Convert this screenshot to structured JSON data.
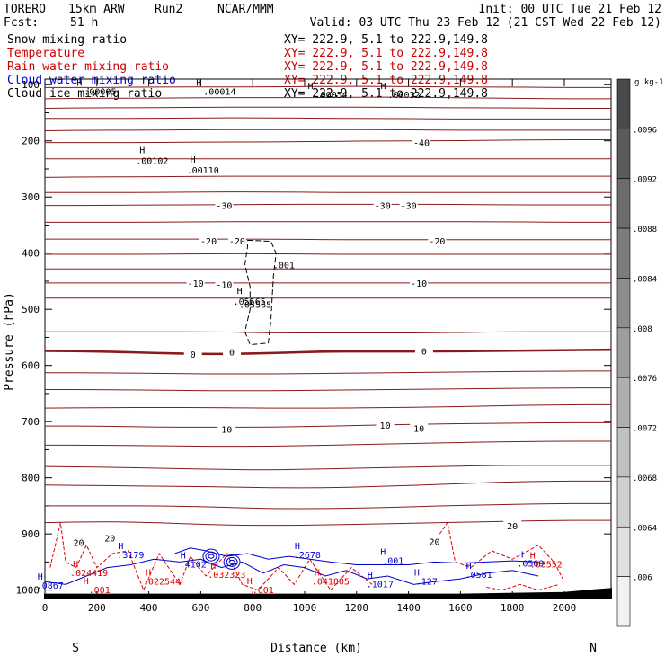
{
  "header": {
    "model": "TORERO",
    "resolution": "15km ARW",
    "run": "Run2",
    "source": "NCAR/MMM",
    "init": "Init: 00 UTC Tue 21 Feb 12",
    "fcst_label": "Fcst:",
    "fcst_value": "51 h",
    "valid": "Valid: 03 UTC Thu 23 Feb 12 (21 CST Wed 22 Feb 12)"
  },
  "fields": [
    {
      "name": "Snow mixing ratio",
      "xy": "XY= 222.9,   5.1 to 222.9,149.8",
      "color": "#000000"
    },
    {
      "name": "Temperature",
      "xy": "XY= 222.9,   5.1 to 222.9,149.8",
      "color": "#cc0000"
    },
    {
      "name": "Rain water mixing ratio",
      "xy": "XY= 222.9,   5.1 to 222.9,149.8",
      "color": "#cc0000"
    },
    {
      "name": "Cloud water mixing ratio",
      "xy": "XY= 222.9,   5.1 to 222.9,149.8",
      "color": "#0000cc"
    },
    {
      "name": "Cloud ice mixing ratio",
      "xy": "XY= 222.9,   5.1 to 222.9,149.8",
      "color": "#000000"
    }
  ],
  "colors": {
    "temperature": "#8b1a1a",
    "freezing": "#8b1a1a",
    "rain": "#dd0000",
    "cloud_water": "#0000cc",
    "ice": "#000000"
  },
  "chart_data": {
    "type": "line",
    "xlabel": "Distance (km)",
    "ylabel": "Pressure (hPa)",
    "xlim": [
      0,
      2180
    ],
    "ylim": [
      1015,
      90
    ],
    "x_ticks": [
      "0",
      "200",
      "400",
      "600",
      "800",
      "1000",
      "1200",
      "1400",
      "1600",
      "1800",
      "2000"
    ],
    "y_ticks": [
      "100",
      "200",
      "300",
      "400",
      "500",
      "600",
      "700",
      "800",
      "900",
      "1000"
    ],
    "end_labels": {
      "left": "S",
      "right": "N"
    },
    "isotherms": [
      {
        "t": -40,
        "p": [
          105,
          105,
          104,
          104,
          104,
          103,
          103,
          104,
          104,
          105,
          105
        ]
      },
      {
        "t": -40,
        "p": [
          125,
          124,
          124,
          123,
          123,
          123,
          122,
          123,
          124,
          125,
          125
        ]
      },
      {
        "t": -40,
        "p": [
          142,
          141,
          141,
          140,
          140,
          140,
          140,
          141,
          141,
          142,
          142
        ]
      },
      {
        "t": -40,
        "p": [
          160,
          160,
          160,
          159,
          159,
          160,
          160,
          161,
          161,
          161,
          161
        ]
      },
      {
        "t": -40,
        "p": [
          182,
          181,
          181,
          180,
          180,
          180,
          180,
          181,
          181,
          181,
          181
        ]
      },
      {
        "t": -40,
        "p": [
          203,
          203,
          203,
          202,
          202,
          201,
          200,
          200,
          199,
          198,
          198
        ]
      },
      {
        "t": -30,
        "p": [
          232,
          232,
          232,
          232,
          232,
          232,
          232,
          232,
          232,
          232,
          232
        ]
      },
      {
        "t": -30,
        "p": [
          265,
          264,
          264,
          263,
          263,
          263,
          263,
          263,
          263,
          263,
          263
        ]
      },
      {
        "t": -30,
        "p": [
          292,
          292,
          292,
          291,
          291,
          292,
          292,
          292,
          292,
          292,
          292
        ]
      },
      {
        "t": -30,
        "p": [
          315,
          315,
          314,
          314,
          313,
          313,
          313,
          313,
          314,
          314,
          314
        ]
      },
      {
        "t": -30,
        "p": [
          345,
          345,
          345,
          344,
          344,
          344,
          344,
          344,
          344,
          345,
          345
        ]
      },
      {
        "t": -20,
        "p": [
          375,
          375,
          375,
          375,
          375,
          376,
          376,
          376,
          376,
          376,
          376
        ]
      },
      {
        "t": -20,
        "p": [
          402,
          402,
          402,
          401,
          401,
          402,
          402,
          402,
          402,
          402,
          402
        ]
      },
      {
        "t": -20,
        "p": [
          428,
          428,
          428,
          428,
          428,
          428,
          428,
          428,
          428,
          428,
          428
        ]
      },
      {
        "t": -10,
        "p": [
          453,
          453,
          453,
          453,
          453,
          453,
          453,
          453,
          453,
          453,
          453
        ]
      },
      {
        "t": -10,
        "p": [
          480,
          480,
          480,
          480,
          480,
          480,
          480,
          480,
          480,
          480,
          480
        ]
      },
      {
        "t": -10,
        "p": [
          510,
          510,
          510,
          510,
          510,
          510,
          510,
          510,
          510,
          510,
          510
        ]
      },
      {
        "t": -10,
        "p": [
          540,
          540,
          540,
          540,
          542,
          542,
          542,
          542,
          540,
          540,
          540
        ]
      },
      {
        "t": 0,
        "p": [
          574,
          575,
          578,
          580,
          578,
          575,
          575,
          575,
          574,
          573,
          572
        ]
      },
      {
        "t": 0,
        "p": [
          613,
          613,
          614,
          615,
          615,
          614,
          613,
          612,
          611,
          610,
          610
        ]
      },
      {
        "t": 0,
        "p": [
          643,
          643,
          644,
          645,
          645,
          644,
          643,
          642,
          641,
          640,
          640
        ]
      },
      {
        "t": 10,
        "p": [
          676,
          675,
          675,
          675,
          676,
          676,
          675,
          674,
          672,
          670,
          670
        ]
      },
      {
        "t": 10,
        "p": [
          708,
          708,
          710,
          710,
          710,
          708,
          706,
          704,
          703,
          702,
          702
        ]
      },
      {
        "t": 10,
        "p": [
          742,
          742,
          743,
          744,
          744,
          742,
          740,
          738,
          736,
          735,
          735
        ]
      },
      {
        "t": 10,
        "p": [
          780,
          781,
          783,
          785,
          786,
          784,
          782,
          780,
          778,
          778,
          778
        ]
      },
      {
        "t": 20,
        "p": [
          813,
          814,
          815,
          816,
          818,
          818,
          815,
          812,
          808,
          806,
          806
        ]
      },
      {
        "t": 20,
        "p": [
          850,
          850,
          850,
          852,
          855,
          855,
          853,
          850,
          848,
          846,
          846
        ]
      },
      {
        "t": 20,
        "p": [
          880,
          878,
          880,
          884,
          885,
          884,
          882,
          880,
          878,
          876,
          876
        ]
      }
    ],
    "isotherm_labels": [
      {
        "text": "-40",
        "x": 1450,
        "p": 203
      },
      {
        "text": "-30",
        "x": 690,
        "p": 315
      },
      {
        "text": "-30",
        "x": 1300,
        "p": 315
      },
      {
        "text": "-30",
        "x": 1400,
        "p": 315
      },
      {
        "text": "-20",
        "x": 630,
        "p": 378
      },
      {
        "text": "-20",
        "x": 740,
        "p": 378
      },
      {
        "text": "-20",
        "x": 1510,
        "p": 378
      },
      {
        "text": "-10",
        "x": 580,
        "p": 453
      },
      {
        "text": "-10",
        "x": 690,
        "p": 456
      },
      {
        "text": "-10",
        "x": 1440,
        "p": 453
      },
      {
        "text": "0",
        "x": 570,
        "p": 580
      },
      {
        "text": "0",
        "x": 720,
        "p": 576
      },
      {
        "text": "0",
        "x": 1460,
        "p": 574
      },
      {
        "text": "10",
        "x": 1310,
        "p": 706
      },
      {
        "text": "10",
        "x": 1440,
        "p": 712
      },
      {
        "text": "10",
        "x": 700,
        "p": 713
      },
      {
        "text": "20",
        "x": 1800,
        "p": 885
      },
      {
        "text": "20",
        "x": 1500,
        "p": 913
      },
      {
        "text": "20",
        "x": 130,
        "p": 915
      },
      {
        "text": "20",
        "x": 250,
        "p": 907
      }
    ],
    "ice_contour": {
      "level": ".001",
      "points": [
        [
          780,
          377
        ],
        [
          870,
          379
        ],
        [
          890,
          400
        ],
        [
          880,
          440
        ],
        [
          875,
          480
        ],
        [
          870,
          520
        ],
        [
          860,
          560
        ],
        [
          790,
          563
        ],
        [
          770,
          540
        ],
        [
          790,
          500
        ],
        [
          790,
          460
        ],
        [
          770,
          420
        ],
        [
          780,
          390
        ],
        [
          780,
          377
        ]
      ]
    },
    "ice_labels": [
      {
        "text": ".001",
        "x": 920,
        "p": 427
      },
      {
        "text": ".05565",
        "x": 810,
        "p": 497
      }
    ],
    "h_markers": [
      {
        "text": ".00102",
        "x": 385,
        "p": 235,
        "color": "#000000"
      },
      {
        "text": ".00110",
        "x": 580,
        "p": 252,
        "color": "#000000"
      },
      {
        "text": ".05565",
        "x": 760,
        "p": 485,
        "color": "#000000"
      }
    ],
    "top_values": [
      {
        "text": ".00005",
        "x": 150,
        "p": 112
      },
      {
        "text": ".00014",
        "x": 610,
        "p": 112
      },
      {
        "text": ".00054",
        "x": 1040,
        "p": 117
      },
      {
        "text": ".00032",
        "x": 1320,
        "p": 117
      }
    ],
    "colorbar": {
      "unit": "g kg-1",
      "levels": [
        ".0096",
        ".0092",
        ".0088",
        ".0084",
        ".008",
        ".0076",
        ".0072",
        ".0068",
        ".0064",
        ".006"
      ],
      "lightest": "#f2f2f2",
      "darkest": "#4a4a4a"
    },
    "rain_labels": [
      {
        "text": ".024419",
        "x": 170,
        "p": 975
      },
      {
        "text": ".022544",
        "x": 450,
        "p": 990
      },
      {
        "text": ".032323",
        "x": 700,
        "p": 978
      },
      {
        "text": ".041805",
        "x": 1100,
        "p": 990
      },
      {
        "text": ".03552",
        "x": 1930,
        "p": 960
      },
      {
        "text": ".001",
        "x": 210,
        "p": 1005
      },
      {
        "text": ".001",
        "x": 840,
        "p": 1005
      }
    ],
    "cloud_labels": [
      {
        "text": ".3179",
        "x": 330,
        "p": 943
      },
      {
        "text": ".4102",
        "x": 570,
        "p": 960
      },
      {
        "text": ".2678",
        "x": 1010,
        "p": 943
      },
      {
        "text": ".1017",
        "x": 1290,
        "p": 995
      },
      {
        "text": ".127",
        "x": 1470,
        "p": 990
      },
      {
        "text": ".0581",
        "x": 1670,
        "p": 978
      },
      {
        "text": ".0867",
        "x": 20,
        "p": 997
      },
      {
        "text": ".001",
        "x": 1340,
        "p": 953
      },
      {
        "text": ".0569",
        "x": 1870,
        "p": 958
      }
    ]
  }
}
